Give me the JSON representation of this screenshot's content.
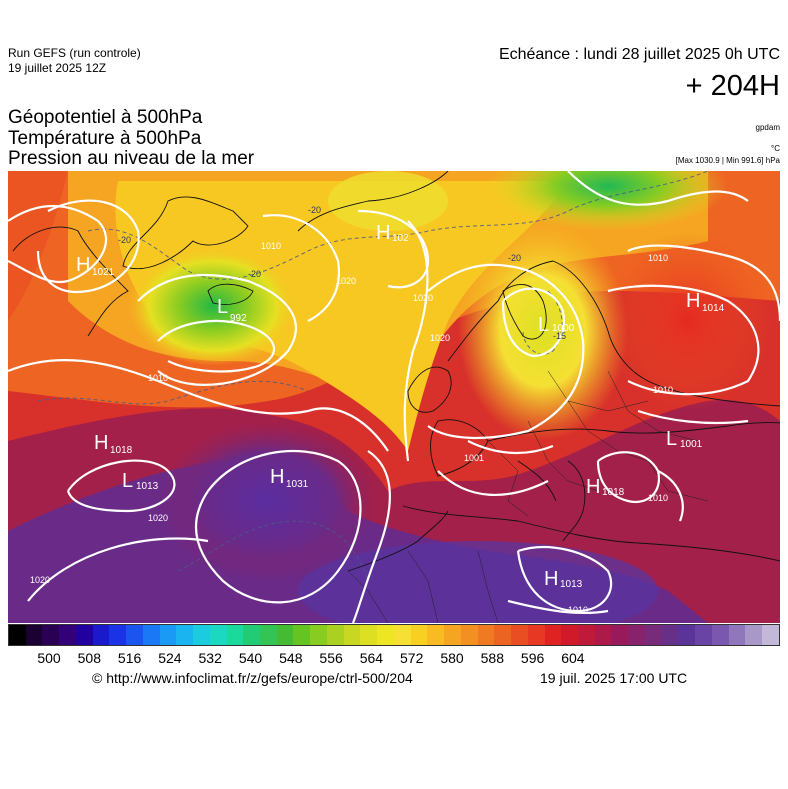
{
  "header": {
    "run_name": "Run GEFS (run controle)",
    "run_date": "19 juillet 2025 12Z",
    "valid_time": "Echéance : lundi 28 juillet 2025 0h UTC",
    "lead_time": "+ 204H"
  },
  "layers": {
    "geopotential": "Géopotentiel à 500hPa",
    "temperature": "Température à 500hPa",
    "pressure": "Pression au niveau de la mer"
  },
  "units": {
    "geopotential": "gpdam",
    "temperature": "°C",
    "range": "[Max 1030.9 | Min 991.6] hPa"
  },
  "map": {
    "pressure_centers": [
      {
        "type": "H",
        "value": "1021"
      },
      {
        "type": "L",
        "value": "992"
      },
      {
        "type": "H",
        "value": "102"
      },
      {
        "type": "L",
        "value": "1000"
      },
      {
        "type": "H",
        "value": "1014"
      },
      {
        "type": "H",
        "value": "1018"
      },
      {
        "type": "L",
        "value": "1013"
      },
      {
        "type": "H",
        "value": "1031"
      },
      {
        "type": "L",
        "value": "1001"
      },
      {
        "type": "H",
        "value": "1018"
      },
      {
        "type": "H",
        "value": "1013"
      }
    ],
    "isobar_labels": [
      "1010",
      "1020",
      "1010",
      "1020",
      "1020",
      "1010",
      "1001",
      "1010",
      "1020",
      "1020",
      "1010",
      "1010"
    ],
    "temp_labels": [
      "-20",
      "-20",
      "-20",
      "-20",
      "-15"
    ]
  },
  "colorbar": {
    "tick_labels": [
      "500",
      "508",
      "516",
      "524",
      "532",
      "540",
      "548",
      "556",
      "564",
      "572",
      "580",
      "588",
      "596",
      "604"
    ],
    "colors": [
      "#000000",
      "#1a0033",
      "#2a0055",
      "#330077",
      "#2200a0",
      "#1a1acc",
      "#1a33e6",
      "#1a55f0",
      "#1a77f5",
      "#1a99f5",
      "#1ab5f0",
      "#1accdd",
      "#1ad9c0",
      "#1ad99a",
      "#22cc77",
      "#33c455",
      "#44bb33",
      "#66c422",
      "#88cc22",
      "#aad022",
      "#c8d822",
      "#dde022",
      "#eee622",
      "#f5e033",
      "#f8d022",
      "#f8bb22",
      "#f5a522",
      "#f29022",
      "#ef7a22",
      "#ec6422",
      "#e94e22",
      "#e63822",
      "#e02222",
      "#d01a2a",
      "#c01a3a",
      "#ad1a4a",
      "#991a5a",
      "#88226a",
      "#772b78",
      "#663088",
      "#5a3499",
      "#6a44a5",
      "#7a58b0",
      "#9077bb",
      "#a898c8",
      "#c4b8d8"
    ]
  },
  "footer": {
    "credit_url": "© http://www.infoclimat.fr/z/gefs/europe/ctrl-500/204",
    "credit_time": "19 juil. 2025 17:00 UTC"
  }
}
